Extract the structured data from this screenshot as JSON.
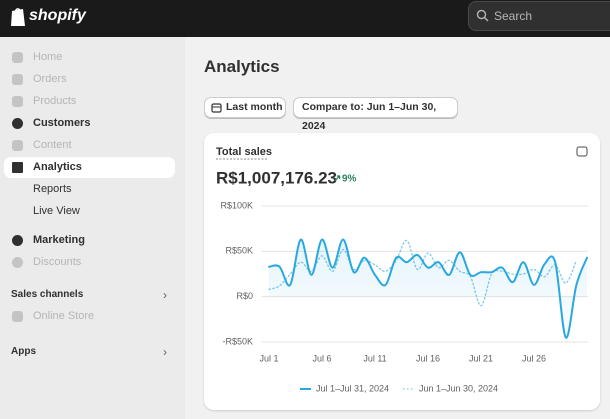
{
  "topbar": {
    "logo": "shopify",
    "search": "Search"
  },
  "sidebar": {
    "items": [
      "Home",
      "Orders",
      "Products",
      "Customers",
      "Content",
      "Analytics",
      "Reports",
      "Live View",
      "Marketing",
      "Discounts"
    ],
    "sections": [
      {
        "title": "Sales channels",
        "items": [
          "Online Store"
        ]
      },
      {
        "title": "Apps"
      }
    ]
  },
  "page": {
    "title": "Analytics",
    "date_button": "Last month",
    "compare_button": "Compare to: Jun 1–Jun 30, 2024"
  },
  "card": {
    "title": "Total sales",
    "total": "R$1,007,176.23",
    "change": "9%"
  },
  "chart_data": {
    "type": "line",
    "categories": [
      "Jul 1",
      null,
      null,
      null,
      null,
      "Jul 6",
      null,
      null,
      null,
      null,
      "Jul 11",
      null,
      null,
      null,
      null,
      "Jul 16",
      null,
      null,
      null,
      null,
      "Jul 21",
      null,
      null,
      null,
      null,
      "Jul 26",
      null,
      null,
      null,
      null,
      null
    ],
    "series": [
      {
        "name": "Jul 1–Jul 31, 2024",
        "color": "#29a8e0",
        "style": "solid",
        "values": [
          33000,
          33000,
          13000,
          63000,
          24000,
          63000,
          32000,
          63000,
          27000,
          43000,
          24000,
          13000,
          43000,
          38000,
          46000,
          32000,
          38000,
          24000,
          49000,
          24000,
          27000,
          27000,
          32000,
          16000,
          38000,
          13000,
          36000,
          38000,
          -45000,
          13000,
          43000
        ]
      },
      {
        "name": "Jun 1–Jun 30, 2024",
        "color": "#7fc8e8",
        "style": "dotted",
        "values": [
          8000,
          12000,
          25000,
          38000,
          28000,
          45000,
          28000,
          52000,
          30000,
          40000,
          35000,
          28000,
          40000,
          62000,
          30000,
          48000,
          32000,
          40000,
          28000,
          22000,
          -10000,
          25000,
          28000,
          25000,
          25000,
          30000,
          22000,
          35000,
          15000,
          40000,
          null
        ]
      }
    ],
    "ylim": [
      -50000,
      100000
    ],
    "yticks": [
      {
        "value": 100000,
        "label": "R$100K"
      },
      {
        "value": 50000,
        "label": "R$50K"
      },
      {
        "value": 0,
        "label": "R$0"
      },
      {
        "value": -50000,
        "label": "-R$50K"
      }
    ],
    "grid": true
  }
}
